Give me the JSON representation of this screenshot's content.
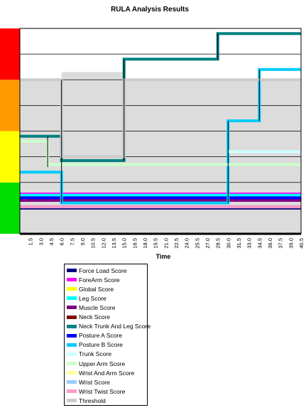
{
  "chart_data": {
    "type": "line",
    "title": "RULA Analysis Results",
    "xlabel": "Time",
    "ylabel": "",
    "x_ticks": [
      "1.5",
      "3.0",
      "4.5",
      "6.0",
      "7.5",
      "9.0",
      "10.5",
      "12.0",
      "13.5",
      "15.0",
      "16.5",
      "18.0",
      "19.5",
      "21.0",
      "22.5",
      "24.0",
      "25.5",
      "27.0",
      "28.5",
      "30.0",
      "31.5",
      "33.0",
      "34.5",
      "36.0",
      "37.5",
      "39.0",
      "40.5"
    ],
    "xlim": [
      0,
      40.5
    ],
    "ylim": [
      0,
      8
    ],
    "score_bands": [
      {
        "from": 0,
        "to": 2,
        "color": "#00dd00"
      },
      {
        "from": 2,
        "to": 4,
        "color": "#ffff00"
      },
      {
        "from": 4,
        "to": 6,
        "color": "#ff9900"
      },
      {
        "from": 6,
        "to": 8,
        "color": "#ff0000"
      }
    ],
    "threshold_shading": [
      {
        "x0": 0,
        "x1": 40.5,
        "y0": 0,
        "y1": 6
      },
      {
        "x0": 6.0,
        "x1": 15.0,
        "y0": 6,
        "y1": 6.3
      }
    ],
    "series": [
      {
        "name": "Force Load Score",
        "color": "#000080",
        "x": [
          0,
          40.5
        ],
        "y": [
          1.0,
          1.0
        ]
      },
      {
        "name": "ForeArm Score",
        "color": "#ff00ff",
        "x": [
          0,
          40.5
        ],
        "y": [
          1.55,
          1.55
        ]
      },
      {
        "name": "Global Score",
        "color": "#ffff00",
        "x": [],
        "y": []
      },
      {
        "name": "Leg Score",
        "color": "#00ffff",
        "x": [
          0,
          40.5
        ],
        "y": [
          1.5,
          1.5
        ]
      },
      {
        "name": "Muscle Score",
        "color": "#800080",
        "x": [
          0,
          40.5
        ],
        "y": [
          1.3,
          1.3
        ]
      },
      {
        "name": "Neck Score",
        "color": "#800000",
        "x": [
          0,
          40.5
        ],
        "y": [
          1.05,
          1.05
        ]
      },
      {
        "name": "Neck Trunk And Leg Score",
        "color": "#008080",
        "x": [
          0,
          6.0,
          6.0,
          15.0,
          15.0,
          28.5,
          28.5,
          40.5
        ],
        "y": [
          3.8,
          3.8,
          2.85,
          2.85,
          6.8,
          6.8,
          7.8,
          7.8
        ]
      },
      {
        "name": "Posture A Score",
        "color": "#0000ff",
        "x": [
          0,
          40.5
        ],
        "y": [
          1.4,
          1.4
        ]
      },
      {
        "name": "Posture B Score",
        "color": "#00ccff",
        "x": [
          0,
          6.0,
          6.0,
          30.0,
          30.0,
          34.5,
          34.5,
          40.5
        ],
        "y": [
          2.4,
          2.4,
          1.2,
          1.2,
          4.4,
          4.4,
          6.4,
          6.4
        ]
      },
      {
        "name": "Trunk Score",
        "color": "#ccffff",
        "x": [
          30.0,
          40.5
        ],
        "y": [
          3.2,
          3.2
        ]
      },
      {
        "name": "Upper Arm Score",
        "color": "#ccffcc",
        "x": [
          0,
          4.0,
          4.0,
          40.5
        ],
        "y": [
          3.6,
          3.6,
          2.7,
          2.7
        ]
      },
      {
        "name": "Wrist And Arm Score",
        "color": "#ffff99",
        "x": [],
        "y": []
      },
      {
        "name": "Wrist Score",
        "color": "#99ccff",
        "x": [],
        "y": []
      },
      {
        "name": "Wrist Twist Score",
        "color": "#ff99cc",
        "x": [
          0,
          40.5
        ],
        "y": [
          1.05,
          1.05
        ]
      },
      {
        "name": "Threshold",
        "color": "#cccccc",
        "x": [
          0,
          6.0,
          6.0,
          15.0,
          15.0,
          40.5
        ],
        "y": [
          6.0,
          6.0,
          3.0,
          3.0,
          6.0,
          6.0
        ]
      }
    ],
    "vertical_markers": [
      {
        "x": 4.0,
        "y0": 2.6,
        "y1": 3.8
      },
      {
        "x": 6.0,
        "y0": 1.2,
        "y1": 6.0
      },
      {
        "x": 15.0,
        "y0": 2.85,
        "y1": 6.8
      },
      {
        "x": 28.5,
        "y0": 6.8,
        "y1": 7.8
      },
      {
        "x": 30.0,
        "y0": 1.2,
        "y1": 4.4
      },
      {
        "x": 34.5,
        "y0": 4.4,
        "y1": 6.4
      }
    ],
    "grid": "horizontal",
    "legend_position": "bottom-left"
  }
}
